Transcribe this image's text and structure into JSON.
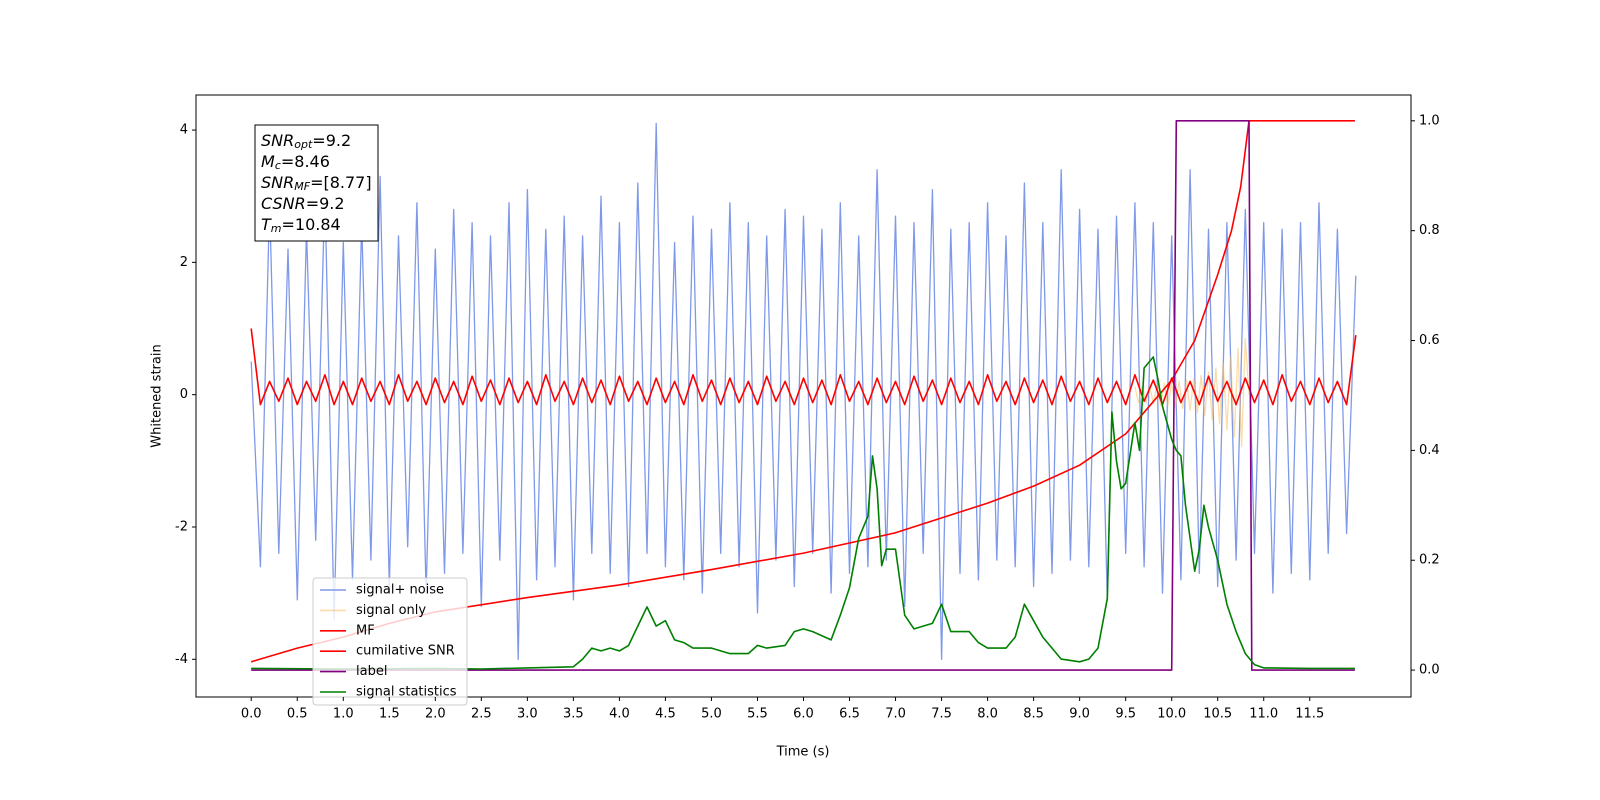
{
  "chart_data": {
    "type": "line",
    "xlabel": "Time (s)",
    "ylabel": "Whitened strain",
    "xlim": [
      -0.6,
      12.6
    ],
    "ylim": [
      -4.57,
      4.53
    ],
    "y2lim": [
      -0.049,
      1.047
    ],
    "xticks": [
      {
        "value": 0,
        "label": "0.0"
      },
      0.5,
      {
        "value": 1,
        "label": "1.0"
      },
      1.5,
      {
        "value": 2,
        "label": "2.0"
      },
      2.5,
      {
        "value": 3,
        "label": "3.0"
      },
      3.5,
      {
        "value": 4,
        "label": "4.0"
      },
      4.5,
      {
        "value": 5,
        "label": "5.0"
      },
      5.5,
      {
        "value": 6,
        "label": "6.0"
      },
      6.5,
      {
        "value": 7,
        "label": "7.0"
      },
      7.5,
      {
        "value": 8,
        "label": "8.0"
      },
      8.5,
      {
        "value": 9,
        "label": "9.0"
      },
      9.5,
      {
        "value": 10,
        "label": "10.0"
      },
      10.5,
      {
        "value": 11,
        "label": "11.0"
      },
      11.5
    ],
    "yticks": [
      -4,
      -2,
      0,
      2,
      4
    ],
    "y2ticks": [
      {
        "value": 0,
        "label": "0.0"
      },
      0.2,
      0.4,
      0.6,
      0.8,
      {
        "value": 1,
        "label": "1.0"
      }
    ],
    "legend_position": "lower left",
    "annotation": [
      {
        "main": "SNR",
        "sub": "opt",
        "rest": "=9.2"
      },
      {
        "main": "M",
        "sub": "c",
        "rest": "=8.46"
      },
      {
        "main": "SNR",
        "sub": "MF",
        "rest": "=[8.77]"
      },
      {
        "main": "CSNR",
        "sub": null,
        "rest": "=9.2"
      },
      {
        "main": "T",
        "sub": "m",
        "rest": "=10.84"
      }
    ],
    "x": [
      0,
      0.1,
      0.2,
      0.3,
      0.4,
      0.5,
      0.6,
      0.7,
      0.8,
      0.9,
      1,
      1.1,
      1.2,
      1.3,
      1.4,
      1.5,
      1.6,
      1.7,
      1.8,
      1.9,
      2,
      2.1,
      2.2,
      2.3,
      2.4,
      2.5,
      2.6,
      2.7,
      2.8,
      2.9,
      3,
      3.1,
      3.2,
      3.3,
      3.4,
      3.5,
      3.6,
      3.7,
      3.8,
      3.9,
      4,
      4.1,
      4.2,
      4.3,
      4.4,
      4.5,
      4.6,
      4.7,
      4.8,
      4.9,
      5,
      5.1,
      5.2,
      5.3,
      5.4,
      5.5,
      5.6,
      5.7,
      5.8,
      5.9,
      6,
      6.1,
      6.2,
      6.3,
      6.4,
      6.5,
      6.6,
      6.7,
      6.8,
      6.9,
      7,
      7.1,
      7.2,
      7.3,
      7.4,
      7.5,
      7.6,
      7.7,
      7.8,
      7.9,
      8,
      8.1,
      8.2,
      8.3,
      8.4,
      8.5,
      8.6,
      8.7,
      8.8,
      8.9,
      9,
      9.1,
      9.2,
      9.3,
      9.4,
      9.5,
      9.6,
      9.7,
      9.8,
      9.9,
      10,
      10.1,
      10.2,
      10.3,
      10.4,
      10.5,
      10.6,
      10.7,
      10.8,
      10.9,
      11,
      11.1,
      11.2,
      11.3,
      11.4,
      11.5,
      11.6,
      11.7,
      11.8,
      11.9,
      12
    ],
    "series": [
      {
        "name": "signal+ noise",
        "color": "#7893e8",
        "axis": "y",
        "values": [
          0.5,
          -2.6,
          2.9,
          -2.4,
          2.2,
          -3.1,
          2.5,
          -2.2,
          3.1,
          -3.4,
          2.3,
          -2.8,
          2.6,
          -2.5,
          3.3,
          -2.9,
          2.4,
          -2.3,
          2.9,
          -3.0,
          2.2,
          -2.7,
          2.8,
          -2.4,
          2.6,
          -3.2,
          2.4,
          -2.5,
          2.9,
          -4.0,
          3.1,
          -2.8,
          2.5,
          -2.6,
          2.7,
          -3.1,
          2.4,
          -2.4,
          3.0,
          -2.7,
          2.6,
          -2.9,
          3.2,
          -2.4,
          4.1,
          -2.6,
          2.3,
          -2.8,
          2.7,
          -3.0,
          2.5,
          -2.4,
          2.9,
          -2.6,
          2.6,
          -3.3,
          2.4,
          -2.5,
          2.8,
          -2.9,
          2.7,
          -2.4,
          2.5,
          -3.0,
          2.9,
          -2.7,
          2.4,
          -2.6,
          3.4,
          -2.5,
          2.7,
          -3.2,
          2.6,
          -2.4,
          3.1,
          -4.0,
          2.5,
          -2.7,
          2.6,
          -2.8,
          2.9,
          -2.5,
          2.4,
          -2.6,
          3.2,
          -2.9,
          2.6,
          -2.7,
          3.4,
          -2.5,
          2.8,
          -2.6,
          2.5,
          -3.1,
          2.7,
          -2.4,
          2.9,
          -2.6,
          2.6,
          -3.0,
          2.4,
          -2.8,
          3.4,
          -2.7,
          2.5,
          -2.9,
          2.6,
          -2.5,
          2.8,
          -2.4,
          2.6,
          -3.0,
          2.5,
          -2.7,
          2.6,
          -2.8,
          2.9,
          -2.4,
          2.5,
          -2.1,
          1.8
        ]
      },
      {
        "name": "signal only",
        "color": "#f7b955",
        "axis": "y",
        "x": [
          9.6,
          9.64,
          9.68,
          9.72,
          9.76,
          9.8,
          9.84,
          9.88,
          9.92,
          9.96,
          10,
          10.04,
          10.08,
          10.12,
          10.16,
          10.2,
          10.24,
          10.28,
          10.32,
          10.36,
          10.4,
          10.44,
          10.48,
          10.52,
          10.56,
          10.6,
          10.64,
          10.68,
          10.72,
          10.76,
          10.8,
          10.84
        ],
        "values": [
          0.12,
          -0.12,
          0.13,
          -0.13,
          0.14,
          -0.14,
          0.15,
          -0.16,
          0.17,
          -0.17,
          0.18,
          -0.19,
          0.2,
          -0.21,
          0.22,
          -0.24,
          0.25,
          -0.27,
          0.29,
          -0.31,
          0.34,
          -0.37,
          0.4,
          -0.44,
          0.48,
          -0.53,
          0.58,
          -0.64,
          0.7,
          -0.78,
          0.85,
          0
        ]
      },
      {
        "name": "MF",
        "color": "#ff0000",
        "axis": "y",
        "values": [
          1.0,
          -0.15,
          0.2,
          -0.1,
          0.25,
          -0.15,
          0.2,
          -0.1,
          0.3,
          -0.15,
          0.2,
          -0.15,
          0.25,
          -0.1,
          0.2,
          -0.15,
          0.3,
          -0.1,
          0.2,
          -0.15,
          0.25,
          -0.12,
          0.2,
          -0.15,
          0.28,
          -0.1,
          0.22,
          -0.15,
          0.25,
          -0.12,
          0.2,
          -0.15,
          0.3,
          -0.1,
          0.2,
          -0.15,
          0.25,
          -0.12,
          0.22,
          -0.15,
          0.28,
          -0.1,
          0.2,
          -0.15,
          0.25,
          -0.12,
          0.2,
          -0.15,
          0.3,
          -0.1,
          0.22,
          -0.15,
          0.25,
          -0.12,
          0.2,
          -0.15,
          0.28,
          -0.1,
          0.2,
          -0.15,
          0.25,
          -0.12,
          0.22,
          -0.15,
          0.3,
          -0.1,
          0.2,
          -0.15,
          0.25,
          -0.12,
          0.2,
          -0.15,
          0.28,
          -0.1,
          0.22,
          -0.15,
          0.25,
          -0.12,
          0.2,
          -0.15,
          0.3,
          -0.1,
          0.2,
          -0.15,
          0.25,
          -0.12,
          0.22,
          -0.15,
          0.28,
          -0.1,
          0.2,
          -0.15,
          0.25,
          -0.12,
          0.2,
          -0.15,
          0.3,
          -0.1,
          0.22,
          -0.15,
          0.25,
          -0.12,
          0.2,
          -0.15,
          0.28,
          -0.1,
          0.2,
          -0.15,
          0.25,
          -0.12,
          0.22,
          -0.15,
          0.3,
          -0.1,
          0.2,
          -0.15,
          0.25,
          -0.12,
          0.2,
          -0.15,
          0.9
        ]
      },
      {
        "name": "cumilative SNR",
        "color": "#ff0000",
        "axis": "y2",
        "x": [
          0,
          0.5,
          1,
          1.5,
          2,
          3,
          4,
          5,
          6,
          7,
          8,
          8.5,
          9,
          9.5,
          10,
          10.25,
          10.5,
          10.65,
          10.75,
          10.84,
          11,
          11.99
        ],
        "values": [
          0.015,
          0.04,
          0.06,
          0.085,
          0.106,
          0.132,
          0.155,
          0.183,
          0.213,
          0.25,
          0.304,
          0.335,
          0.373,
          0.43,
          0.528,
          0.6,
          0.72,
          0.8,
          0.88,
          1.0,
          1.0,
          1.0
        ]
      },
      {
        "name": "label",
        "color": "#800080",
        "axis": "y2",
        "x": [
          0,
          10,
          10.05,
          10.84,
          10.87,
          11.99
        ],
        "values": [
          0,
          0,
          1,
          1,
          0,
          0
        ]
      },
      {
        "name": "signal statistics",
        "color": "#008000",
        "axis": "y2",
        "x": [
          0,
          1,
          2,
          2.5,
          3,
          3.5,
          3.6,
          3.7,
          3.8,
          3.9,
          4,
          4.1,
          4.2,
          4.3,
          4.4,
          4.5,
          4.6,
          4.7,
          4.8,
          4.9,
          5,
          5.2,
          5.4,
          5.5,
          5.6,
          5.8,
          5.9,
          6,
          6.1,
          6.3,
          6.4,
          6.5,
          6.6,
          6.7,
          6.75,
          6.8,
          6.85,
          6.9,
          7,
          7.1,
          7.2,
          7.4,
          7.5,
          7.6,
          7.8,
          7.9,
          8,
          8.2,
          8.3,
          8.4,
          8.5,
          8.6,
          8.8,
          9,
          9.1,
          9.2,
          9.3,
          9.35,
          9.4,
          9.45,
          9.5,
          9.6,
          9.65,
          9.7,
          9.8,
          9.85,
          9.9,
          10,
          10.05,
          10.1,
          10.15,
          10.25,
          10.3,
          10.35,
          10.4,
          10.5,
          10.6,
          10.7,
          10.8,
          10.9,
          11,
          11.5,
          11.99
        ],
        "values": [
          0.003,
          0.002,
          0.003,
          0.002,
          0.004,
          0.006,
          0.02,
          0.04,
          0.035,
          0.04,
          0.035,
          0.045,
          0.08,
          0.115,
          0.08,
          0.09,
          0.055,
          0.05,
          0.04,
          0.04,
          0.04,
          0.03,
          0.03,
          0.045,
          0.04,
          0.045,
          0.07,
          0.075,
          0.07,
          0.055,
          0.1,
          0.15,
          0.24,
          0.28,
          0.39,
          0.33,
          0.19,
          0.22,
          0.22,
          0.1,
          0.075,
          0.085,
          0.12,
          0.07,
          0.07,
          0.05,
          0.04,
          0.04,
          0.06,
          0.12,
          0.09,
          0.06,
          0.02,
          0.015,
          0.02,
          0.04,
          0.13,
          0.47,
          0.38,
          0.33,
          0.34,
          0.45,
          0.4,
          0.55,
          0.57,
          0.53,
          0.48,
          0.42,
          0.4,
          0.39,
          0.3,
          0.18,
          0.22,
          0.3,
          0.26,
          0.2,
          0.12,
          0.07,
          0.03,
          0.01,
          0.004,
          0.003,
          0.003
        ]
      }
    ]
  }
}
